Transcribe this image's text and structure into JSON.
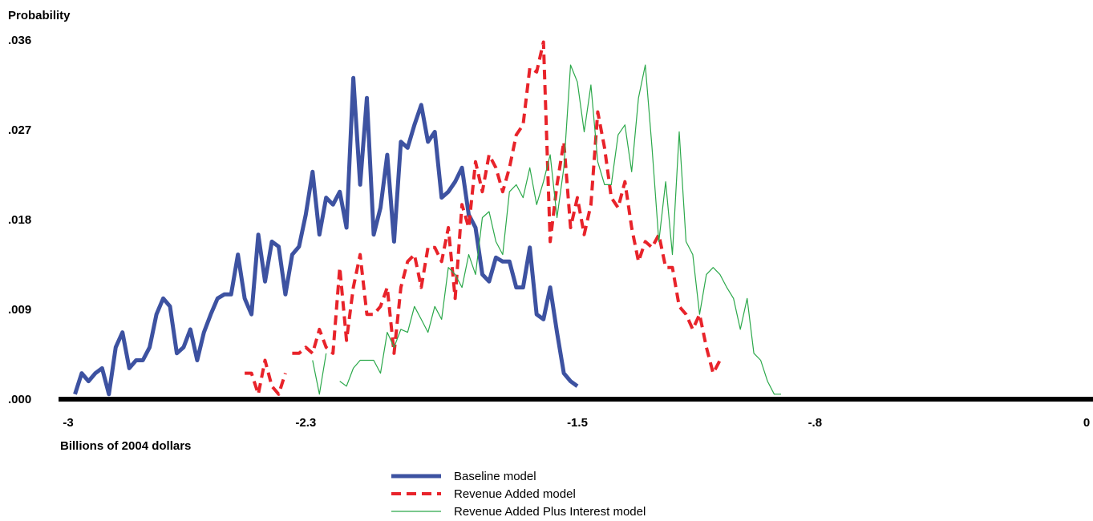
{
  "chart_data": {
    "type": "line",
    "title": "",
    "ylabel": "Probability",
    "xlabel": "Billions of 2004 dollars",
    "xlim": [
      -3,
      0
    ],
    "ylim": [
      0,
      0.036
    ],
    "x_ticks": [
      -3,
      -2.3,
      -1.5,
      -0.8,
      0
    ],
    "x_tick_labels": [
      "-3",
      "-2.3",
      "-1.5",
      "-.8",
      "0"
    ],
    "y_ticks": [
      0,
      0.009,
      0.018,
      0.027,
      0.036
    ],
    "y_tick_labels": [
      ".000",
      ".009",
      ".018",
      ".027",
      ".036"
    ],
    "grid": false,
    "legend_position": "bottom-center",
    "series": [
      {
        "name": "Baseline model",
        "color": "#3d52a1",
        "style": "solid-thick",
        "points": [
          [
            -2.98,
            0.0005
          ],
          [
            -2.96,
            0.0026
          ],
          [
            -2.94,
            0.0018
          ],
          [
            -2.92,
            0.0026
          ],
          [
            -2.9,
            0.0031
          ],
          [
            -2.88,
            0.0005
          ],
          [
            -2.86,
            0.0052
          ],
          [
            -2.84,
            0.0067
          ],
          [
            -2.82,
            0.0031
          ],
          [
            -2.8,
            0.0039
          ],
          [
            -2.78,
            0.0039
          ],
          [
            -2.76,
            0.0052
          ],
          [
            -2.74,
            0.0085
          ],
          [
            -2.72,
            0.0101
          ],
          [
            -2.7,
            0.0093
          ],
          [
            -2.68,
            0.0046
          ],
          [
            -2.66,
            0.0052
          ],
          [
            -2.64,
            0.007
          ],
          [
            -2.62,
            0.0039
          ],
          [
            -2.6,
            0.0067
          ],
          [
            -2.58,
            0.0085
          ],
          [
            -2.56,
            0.0101
          ],
          [
            -2.54,
            0.0105
          ],
          [
            -2.52,
            0.0105
          ],
          [
            -2.5,
            0.0145
          ],
          [
            -2.48,
            0.0101
          ],
          [
            -2.46,
            0.0085
          ],
          [
            -2.44,
            0.0165
          ],
          [
            -2.42,
            0.0118
          ],
          [
            -2.4,
            0.0158
          ],
          [
            -2.38,
            0.0153
          ],
          [
            -2.36,
            0.0105
          ],
          [
            -2.34,
            0.0145
          ],
          [
            -2.32,
            0.0153
          ],
          [
            -2.3,
            0.0185
          ],
          [
            -2.28,
            0.0228
          ],
          [
            -2.26,
            0.0165
          ],
          [
            -2.24,
            0.0202
          ],
          [
            -2.22,
            0.0195
          ],
          [
            -2.2,
            0.0208
          ],
          [
            -2.18,
            0.0172
          ],
          [
            -2.16,
            0.0322
          ],
          [
            -2.14,
            0.0215
          ],
          [
            -2.12,
            0.0302
          ],
          [
            -2.1,
            0.0165
          ],
          [
            -2.08,
            0.0192
          ],
          [
            -2.06,
            0.0245
          ],
          [
            -2.04,
            0.0158
          ],
          [
            -2.02,
            0.0258
          ],
          [
            -2.0,
            0.0252
          ],
          [
            -1.98,
            0.0275
          ],
          [
            -1.96,
            0.0295
          ],
          [
            -1.94,
            0.0258
          ],
          [
            -1.92,
            0.0268
          ],
          [
            -1.9,
            0.0202
          ],
          [
            -1.88,
            0.0208
          ],
          [
            -1.86,
            0.0218
          ],
          [
            -1.84,
            0.0232
          ],
          [
            -1.82,
            0.0185
          ],
          [
            -1.8,
            0.0172
          ],
          [
            -1.78,
            0.0125
          ],
          [
            -1.76,
            0.0118
          ],
          [
            -1.74,
            0.0142
          ],
          [
            -1.72,
            0.0138
          ],
          [
            -1.7,
            0.0138
          ],
          [
            -1.68,
            0.0112
          ],
          [
            -1.66,
            0.0112
          ],
          [
            -1.64,
            0.0152
          ],
          [
            -1.62,
            0.0085
          ],
          [
            -1.6,
            0.008
          ],
          [
            -1.58,
            0.0112
          ],
          [
            -1.56,
            0.0067
          ],
          [
            -1.54,
            0.0026
          ],
          [
            -1.52,
            0.0018
          ],
          [
            -1.5,
            0.0013
          ]
        ]
      },
      {
        "name": "Revenue Added model",
        "color": "#e8232a",
        "style": "dashed",
        "points": [
          [
            -2.62,
            0.0005
          ],
          null,
          [
            -2.48,
            0.0026
          ],
          [
            -2.46,
            0.0026
          ],
          [
            -2.44,
            0.0005
          ],
          [
            -2.42,
            0.0039
          ],
          [
            -2.4,
            0.0013
          ],
          [
            -2.38,
            0.0005
          ],
          [
            -2.36,
            0.0026
          ],
          null,
          [
            -2.34,
            0.0046
          ],
          [
            -2.32,
            0.0046
          ],
          [
            -2.3,
            0.0052
          ],
          [
            -2.28,
            0.0046
          ],
          [
            -2.26,
            0.007
          ],
          [
            -2.24,
            0.0052
          ],
          [
            -2.22,
            0.0046
          ],
          [
            -2.2,
            0.0132
          ],
          [
            -2.18,
            0.0059
          ],
          [
            -2.16,
            0.0112
          ],
          [
            -2.14,
            0.0145
          ],
          [
            -2.12,
            0.0085
          ],
          [
            -2.1,
            0.0085
          ],
          [
            -2.08,
            0.0093
          ],
          [
            -2.06,
            0.0112
          ],
          [
            -2.04,
            0.0046
          ],
          [
            -2.02,
            0.0112
          ],
          [
            -2.0,
            0.0138
          ],
          [
            -1.98,
            0.0145
          ],
          [
            -1.96,
            0.0112
          ],
          [
            -1.94,
            0.0152
          ],
          [
            -1.92,
            0.0152
          ],
          [
            -1.9,
            0.0138
          ],
          [
            -1.88,
            0.0172
          ],
          [
            -1.86,
            0.0101
          ],
          [
            -1.84,
            0.0195
          ],
          [
            -1.82,
            0.0172
          ],
          [
            -1.8,
            0.0238
          ],
          [
            -1.78,
            0.0208
          ],
          [
            -1.76,
            0.0245
          ],
          [
            -1.74,
            0.0232
          ],
          [
            -1.72,
            0.0208
          ],
          [
            -1.7,
            0.0232
          ],
          [
            -1.68,
            0.0265
          ],
          [
            -1.66,
            0.0275
          ],
          [
            -1.64,
            0.0332
          ],
          [
            -1.62,
            0.0328
          ],
          [
            -1.6,
            0.0358
          ],
          [
            -1.58,
            0.0158
          ],
          [
            -1.56,
            0.0215
          ],
          [
            -1.54,
            0.0258
          ],
          [
            -1.52,
            0.0172
          ],
          [
            -1.5,
            0.0202
          ],
          [
            -1.48,
            0.0165
          ],
          [
            -1.46,
            0.0195
          ],
          [
            -1.44,
            0.0288
          ],
          [
            -1.42,
            0.0252
          ],
          [
            -1.4,
            0.0202
          ],
          [
            -1.38,
            0.0192
          ],
          [
            -1.36,
            0.0218
          ],
          [
            -1.34,
            0.0172
          ],
          [
            -1.32,
            0.0138
          ],
          [
            -1.3,
            0.0158
          ],
          [
            -1.28,
            0.0152
          ],
          [
            -1.26,
            0.0165
          ],
          [
            -1.24,
            0.0132
          ],
          [
            -1.22,
            0.0132
          ],
          [
            -1.2,
            0.0093
          ],
          [
            -1.18,
            0.0085
          ],
          [
            -1.16,
            0.007
          ],
          [
            -1.14,
            0.0085
          ],
          [
            -1.12,
            0.0052
          ],
          [
            -1.1,
            0.0026
          ],
          [
            -1.08,
            0.0039
          ]
        ]
      },
      {
        "name": "Revenue Added Plus Interest model",
        "color": "#2ba84a",
        "style": "solid-thin",
        "points": [
          [
            -2.28,
            0.0039
          ],
          [
            -2.26,
            0.0005
          ],
          [
            -2.24,
            0.0046
          ],
          null,
          [
            -2.2,
            0.0018
          ],
          [
            -2.18,
            0.0013
          ],
          [
            -2.16,
            0.0031
          ],
          [
            -2.14,
            0.0039
          ],
          [
            -2.12,
            0.0039
          ],
          [
            -2.1,
            0.0039
          ],
          [
            -2.08,
            0.0026
          ],
          [
            -2.06,
            0.0067
          ],
          [
            -2.04,
            0.0052
          ],
          [
            -2.02,
            0.007
          ],
          [
            -2.0,
            0.0067
          ],
          [
            -1.98,
            0.0093
          ],
          [
            -1.96,
            0.008
          ],
          [
            -1.94,
            0.0067
          ],
          [
            -1.92,
            0.0093
          ],
          [
            -1.9,
            0.008
          ],
          [
            -1.88,
            0.0132
          ],
          [
            -1.86,
            0.0125
          ],
          [
            -1.84,
            0.0112
          ],
          [
            -1.82,
            0.0145
          ],
          [
            -1.8,
            0.0125
          ],
          [
            -1.78,
            0.0182
          ],
          [
            -1.76,
            0.0188
          ],
          [
            -1.74,
            0.0158
          ],
          [
            -1.72,
            0.0145
          ],
          [
            -1.7,
            0.0208
          ],
          [
            -1.68,
            0.0215
          ],
          [
            -1.66,
            0.0202
          ],
          [
            -1.64,
            0.0232
          ],
          [
            -1.62,
            0.0195
          ],
          [
            -1.6,
            0.0218
          ],
          [
            -1.58,
            0.0245
          ],
          [
            -1.56,
            0.0182
          ],
          [
            -1.54,
            0.0232
          ],
          [
            -1.52,
            0.0335
          ],
          [
            -1.5,
            0.0318
          ],
          [
            -1.48,
            0.0268
          ],
          [
            -1.46,
            0.0315
          ],
          [
            -1.44,
            0.0238
          ],
          [
            -1.42,
            0.0215
          ],
          [
            -1.4,
            0.0215
          ],
          [
            -1.38,
            0.0265
          ],
          [
            -1.36,
            0.0275
          ],
          [
            -1.34,
            0.0228
          ],
          [
            -1.32,
            0.0302
          ],
          [
            -1.3,
            0.0335
          ],
          [
            -1.28,
            0.0252
          ],
          [
            -1.26,
            0.0158
          ],
          [
            -1.24,
            0.0218
          ],
          [
            -1.22,
            0.0145
          ],
          [
            -1.2,
            0.0268
          ],
          [
            -1.18,
            0.0158
          ],
          [
            -1.16,
            0.0145
          ],
          [
            -1.14,
            0.0085
          ],
          [
            -1.12,
            0.0125
          ],
          [
            -1.1,
            0.0132
          ],
          [
            -1.08,
            0.0125
          ],
          [
            -1.06,
            0.0112
          ],
          [
            -1.04,
            0.0101
          ],
          [
            -1.02,
            0.007
          ],
          [
            -1.0,
            0.0101
          ],
          [
            -0.98,
            0.0046
          ],
          [
            -0.96,
            0.0039
          ],
          [
            -0.94,
            0.0018
          ],
          [
            -0.92,
            0.0005
          ],
          [
            -0.9,
            0.0005
          ]
        ]
      }
    ]
  }
}
